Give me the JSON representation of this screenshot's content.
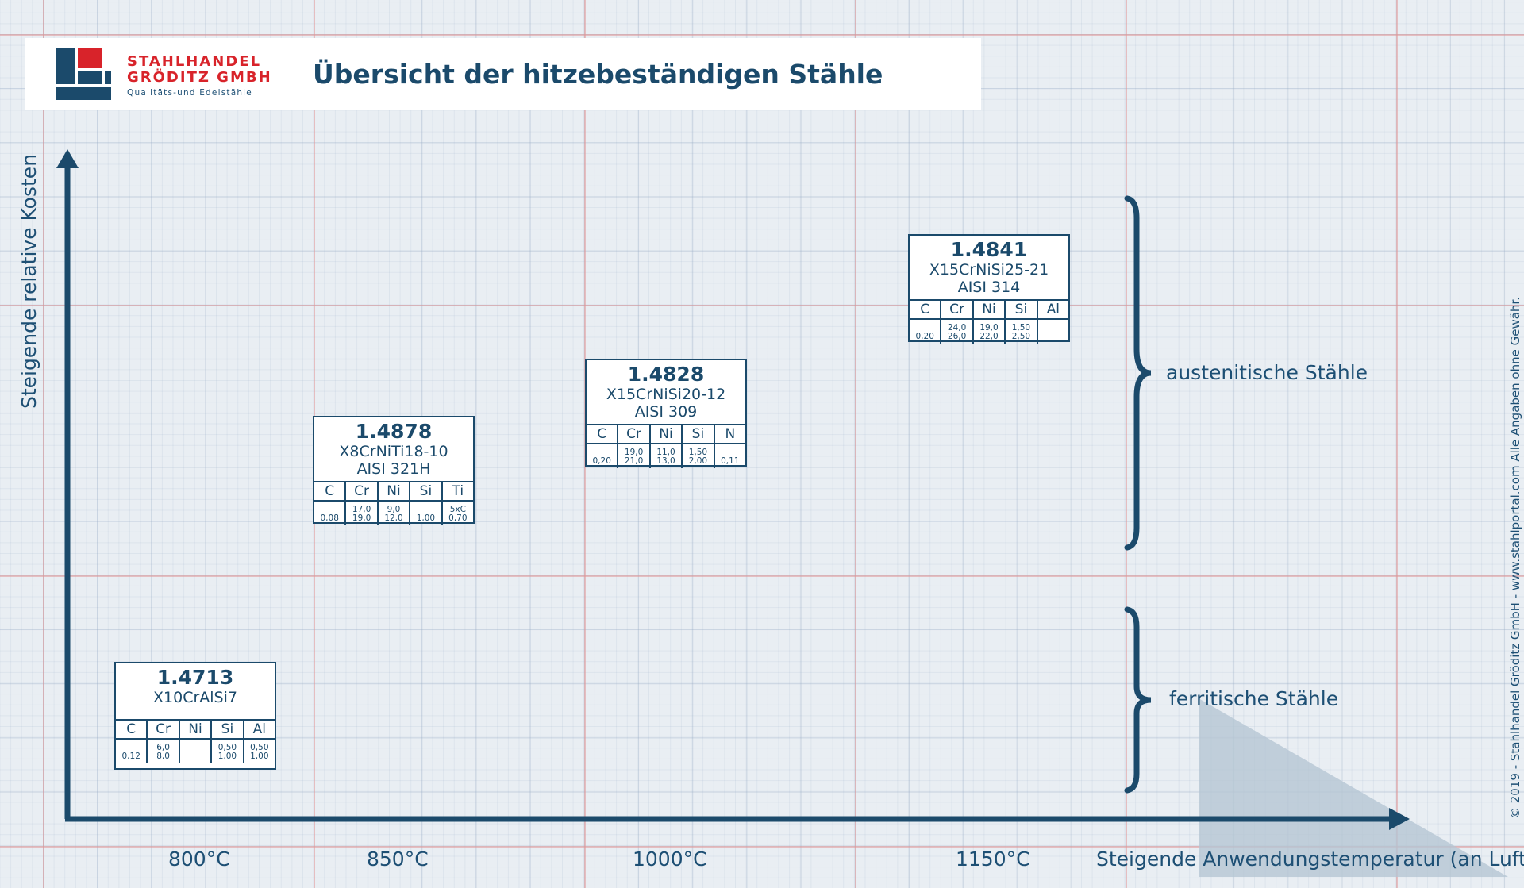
{
  "header": {
    "logo_line1": "STAHLHANDEL",
    "logo_line2": "GRÖDITZ GMBH",
    "logo_line3": "Qualitäts-und Edelstähle",
    "title": "Übersicht der hitzebeständigen Stähle",
    "brand_red": "#d8232a",
    "brand_blue": "#1b4a6b"
  },
  "axes": {
    "y_label": "Steigende relative Kosten",
    "x_label": "Steigende Anwendungstemperatur (an Luft)",
    "ticks": [
      "800°C",
      "850°C",
      "1000°C",
      "1150°C"
    ]
  },
  "side_note": "© 2019 - Stahlhandel Gröditz GmbH - www.stahlportal.com    Alle Angaben ohne Gewähr.",
  "groups": {
    "austenitic": "austenitische Stähle",
    "ferritic": "ferritische Stähle"
  },
  "steels": [
    {
      "number": "1.4713",
      "name": "X10CrAlSi7",
      "aisi": "",
      "elements": [
        "C",
        "Cr",
        "Ni",
        "Si",
        "Al"
      ],
      "values": [
        [
          "0,12"
        ],
        [
          "6,0",
          "8,0"
        ],
        [],
        [
          "0,50",
          "1,00"
        ],
        [
          "0,50",
          "1,00"
        ]
      ]
    },
    {
      "number": "1.4878",
      "name": "X8CrNiTi18-10",
      "aisi": "AISI 321H",
      "elements": [
        "C",
        "Cr",
        "Ni",
        "Si",
        "Ti"
      ],
      "values": [
        [
          "0,08"
        ],
        [
          "17,0",
          "19,0"
        ],
        [
          "9,0",
          "12,0"
        ],
        [
          "1,00"
        ],
        [
          "5xC",
          "0,70"
        ]
      ]
    },
    {
      "number": "1.4828",
      "name": "X15CrNiSi20-12",
      "aisi": "AISI 309",
      "elements": [
        "C",
        "Cr",
        "Ni",
        "Si",
        "N"
      ],
      "values": [
        [
          "0,20"
        ],
        [
          "19,0",
          "21,0"
        ],
        [
          "11,0",
          "13,0"
        ],
        [
          "1,50",
          "2,00"
        ],
        [
          "0,11"
        ]
      ]
    },
    {
      "number": "1.4841",
      "name": "X15CrNiSi25-21",
      "aisi": "AISI 314",
      "elements": [
        "C",
        "Cr",
        "Ni",
        "Si",
        "Al"
      ],
      "values": [
        [
          "0,20"
        ],
        [
          "24,0",
          "26,0"
        ],
        [
          "19,0",
          "22,0"
        ],
        [
          "1,50",
          "2,50"
        ],
        []
      ]
    }
  ]
}
